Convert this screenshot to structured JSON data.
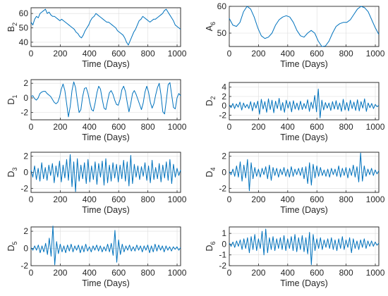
{
  "chart_data": [
    {
      "type": "line",
      "ylabel": "B",
      "ylabel_sub": "2",
      "xlabel": "Time (Days)",
      "xlim": [
        0,
        1024
      ],
      "ylim": [
        37,
        64
      ],
      "xticks": [
        0,
        200,
        400,
        600,
        800,
        1000
      ],
      "yticks": [
        40,
        50,
        60
      ],
      "grid": true,
      "color": "#0072BD",
      "series": [
        {
          "values": [
            54,
            52,
            56,
            58,
            57,
            60,
            61,
            62,
            63,
            60,
            61,
            59,
            58,
            58,
            57,
            56,
            55,
            56,
            55,
            54,
            53,
            52,
            51,
            50,
            49,
            47,
            46,
            44,
            43,
            45,
            48,
            50,
            52,
            55,
            57,
            58,
            60,
            59,
            58,
            57,
            56,
            55,
            54,
            54,
            53,
            52,
            51,
            50,
            48,
            47,
            46,
            45,
            43,
            40,
            38,
            41,
            44,
            47,
            49,
            52,
            55,
            56,
            58,
            57,
            56,
            55,
            54,
            55,
            56,
            56,
            57,
            58,
            59,
            60,
            62,
            63,
            61,
            59,
            57,
            55,
            52,
            51,
            50,
            49
          ]
        }
      ]
    },
    {
      "type": "line",
      "ylabel": "A",
      "ylabel_sub": "6",
      "xlabel": "Time (Days)",
      "xlim": [
        0,
        1024
      ],
      "ylim": [
        45,
        60
      ],
      "xticks": [
        0,
        200,
        400,
        600,
        800,
        1000
      ],
      "yticks": [
        50,
        60
      ],
      "grid": true,
      "color": "#0072BD",
      "series": [
        {
          "values": [
            55.5,
            53,
            52.5,
            54,
            58,
            60,
            59,
            56,
            52,
            49,
            48,
            48.5,
            50,
            53,
            55,
            56,
            56.5,
            56,
            54,
            51,
            49,
            48.5,
            50,
            51,
            50,
            47,
            45,
            45.2,
            47,
            50,
            52.5,
            53.5,
            54,
            54,
            55,
            57,
            59,
            60,
            59.5,
            58,
            55,
            52,
            49.5
          ]
        }
      ]
    },
    {
      "type": "line",
      "ylabel": "D",
      "ylabel_sub": "1",
      "xlabel": "Time (Days)",
      "xlim": [
        0,
        1024
      ],
      "ylim": [
        -3,
        2.5
      ],
      "xticks": [
        0,
        200,
        400,
        600,
        800,
        1000
      ],
      "yticks": [
        -2,
        0,
        2
      ],
      "grid": true,
      "color": "#0072BD",
      "series": [
        {
          "values": [
            0.2,
            0.3,
            -0.1,
            -0.3,
            0,
            0.6,
            0.8,
            0.9,
            0.9,
            0.6,
            0.4,
            0.2,
            -0.2,
            -0.6,
            -0.8,
            -0.6,
            0.1,
            1.2,
            1.9,
            1.0,
            -0.8,
            -2.6,
            -1.2,
            1.0,
            2.2,
            1.4,
            -0.4,
            -2.0,
            -1.6,
            0.2,
            1.3,
            1.4,
            0.6,
            -0.6,
            -1.6,
            -1.8,
            -0.7,
            0.7,
            1.6,
            1.2,
            -0.2,
            -1.4,
            -1.6,
            -0.4,
            0.7,
            1.0,
            0.5,
            -0.3,
            -0.9,
            -1.0,
            -0.2,
            1.1,
            1.6,
            0.9,
            -0.6,
            -1.9,
            -0.8,
            0.6,
            1.0,
            0.5,
            -0.2,
            -0.9,
            -1.6,
            -0.7,
            0.8,
            1.6,
            0.8,
            -0.6,
            -1.4,
            -0.8,
            0.4,
            1.4,
            2.0,
            0.4,
            -1.9,
            -2.2,
            -0.3,
            1.8,
            2.1,
            0.4,
            -1.3,
            -1.5,
            0,
            0.6,
            0.3
          ]
        }
      ]
    },
    {
      "type": "line",
      "ylabel": "D",
      "ylabel_sub": "2",
      "xlabel": "Time (Days)",
      "xlim": [
        0,
        1024
      ],
      "ylim": [
        -3,
        5
      ],
      "xticks": [
        0,
        200,
        400,
        600,
        800,
        1000
      ],
      "yticks": [
        -2,
        0,
        2,
        4
      ],
      "grid": true,
      "color": "#0072BD",
      "series": [
        {
          "values": [
            0.2,
            -0.4,
            0.5,
            -0.6,
            0.4,
            -0.3,
            0.8,
            -0.9,
            0.6,
            -0.4,
            0.3,
            -0.6,
            0.9,
            -1.1,
            0.7,
            -0.5,
            1.0,
            -1.8,
            1.4,
            -0.7,
            0.9,
            -1.4,
            1.5,
            -0.8,
            1.2,
            -1.5,
            1.0,
            -0.6,
            1.6,
            -1.0,
            0.7,
            -1.4,
            1.2,
            -0.5,
            0.9,
            -1.3,
            1.1,
            -0.7,
            0.6,
            -0.9,
            1.0,
            -0.8,
            0.5,
            -0.6,
            1.3,
            -1.2,
            0.8,
            -0.6,
            2.2,
            -1.3,
            3.6,
            -2.6,
            1.2,
            -0.9,
            0.7,
            -0.5,
            0.6,
            -1.0,
            0.9,
            -0.7,
            1.1,
            -0.8,
            0.6,
            -1.2,
            1.4,
            -0.9,
            0.7,
            -1.1,
            1.2,
            -0.6,
            0.8,
            -1.0,
            1.3,
            -1.1,
            0.9,
            -0.5,
            1.5,
            -1.2,
            0.6,
            -0.4,
            0.5,
            -0.6,
            0.3,
            -0.2,
            0.1
          ]
        }
      ]
    },
    {
      "type": "line",
      "ylabel": "D",
      "ylabel_sub": "3",
      "xlabel": "Time (Days)",
      "xlim": [
        0,
        1024
      ],
      "ylim": [
        -2.5,
        2.5
      ],
      "xticks": [
        0,
        200,
        400,
        600,
        800,
        1000
      ],
      "yticks": [
        -2,
        0,
        2
      ],
      "grid": true,
      "color": "#0072BD",
      "series": [
        {
          "values": [
            0.3,
            -0.6,
            0.8,
            -0.9,
            0.5,
            -1.1,
            1.2,
            -0.8,
            0.6,
            -1.0,
            0.9,
            -0.4,
            1.1,
            -1.3,
            0.8,
            -0.6,
            1.4,
            -1.2,
            0.9,
            -0.7,
            1.6,
            -1.0,
            2.2,
            -1.8,
            1.3,
            -2.4,
            1.7,
            -1.1,
            0.9,
            -0.8,
            1.2,
            -1.4,
            1.6,
            -1.2,
            0.8,
            -0.9,
            1.3,
            -1.5,
            1.1,
            -0.6,
            1.4,
            -1.6,
            1.7,
            -1.3,
            0.9,
            -1.1,
            1.2,
            -0.7,
            1.0,
            -1.2,
            0.9,
            -0.8,
            1.5,
            -1.1,
            1.3,
            -1.7,
            2.1,
            -1.4,
            1.0,
            -0.6,
            0.8,
            -0.9,
            0.7,
            -0.5,
            1.2,
            -1.0,
            0.8,
            -1.3,
            1.5,
            -0.9,
            0.6,
            -0.8,
            1.1,
            -1.2,
            0.9,
            -0.7,
            1.3,
            -1.0,
            1.6,
            -1.4,
            1.0,
            -0.6,
            0.5,
            -0.4,
            0.3
          ]
        }
      ]
    },
    {
      "type": "line",
      "ylabel": "D",
      "ylabel_sub": "4",
      "xlabel": "Time (Days)",
      "xlim": [
        0,
        1024
      ],
      "ylim": [
        -2.5,
        2.5
      ],
      "xticks": [
        0,
        200,
        400,
        600,
        800,
        1000
      ],
      "yticks": [
        -2,
        0,
        2
      ],
      "grid": true,
      "color": "#0072BD",
      "series": [
        {
          "values": [
            0.1,
            -0.3,
            0.4,
            -0.5,
            0.8,
            -0.6,
            1.3,
            -1.1,
            0.9,
            -0.7,
            1.6,
            -2.3,
            1.2,
            -0.8,
            0.6,
            -0.5,
            0.4,
            -0.6,
            0.5,
            -0.3,
            0.7,
            -0.8,
            0.9,
            -1.0,
            0.6,
            -0.4,
            0.5,
            -0.6,
            0.4,
            -0.3,
            0.6,
            -0.5,
            0.4,
            -0.6,
            0.7,
            -0.5,
            0.4,
            -0.3,
            0.5,
            -0.4,
            0.6,
            -0.8,
            0.7,
            -1.4,
            1.2,
            -1.6,
            1.0,
            -0.7,
            0.8,
            -0.5,
            0.6,
            -0.4,
            0.3,
            -0.5,
            0.4,
            -0.6,
            0.5,
            -0.3,
            0.4,
            -0.5,
            0.8,
            -0.6,
            0.5,
            -0.4,
            0.6,
            -0.7,
            0.5,
            -0.4,
            0.9,
            -0.6,
            0.7,
            -1.2,
            2.4,
            -1.1,
            0.8,
            -0.5,
            0.4,
            -0.3,
            0.5,
            -0.4,
            0.3,
            -0.2,
            0.2
          ]
        }
      ]
    },
    {
      "type": "line",
      "ylabel": "D",
      "ylabel_sub": "5",
      "xlabel": "Time (Days)",
      "xlim": [
        0,
        1024
      ],
      "ylim": [
        -2,
        2.5
      ],
      "xticks": [
        0,
        200,
        400,
        600,
        800,
        1000
      ],
      "yticks": [
        -2,
        0,
        2
      ],
      "grid": true,
      "color": "#0072BD",
      "series": [
        {
          "values": [
            0.1,
            -0.2,
            0.3,
            -0.2,
            0.4,
            -0.5,
            0.3,
            -0.4,
            0.6,
            -0.7,
            1.2,
            -0.9,
            2.6,
            -1.9,
            0.8,
            -0.6,
            0.5,
            -0.4,
            0.3,
            -0.5,
            0.4,
            -0.3,
            0.5,
            -0.4,
            0.3,
            -0.2,
            0.4,
            -0.5,
            0.3,
            -0.4,
            0.5,
            -0.3,
            0.2,
            -0.4,
            0.3,
            -0.2,
            0.4,
            -0.3,
            0.3,
            -0.4,
            0.2,
            -0.3,
            0.5,
            -0.4,
            0.6,
            -0.8,
            2.1,
            -1.6,
            1.0,
            -0.7,
            0.5,
            -0.4,
            0.3,
            -0.2,
            0.4,
            -0.3,
            0.2,
            -0.3,
            0.4,
            -0.2,
            0.3,
            -0.4,
            0.3,
            -0.2,
            0.4,
            -0.5,
            0.3,
            -0.4,
            0.5,
            -0.3,
            0.4,
            -0.2,
            0.3,
            -0.4,
            0.3,
            -0.2,
            0.2,
            -0.3,
            0.2,
            -0.1,
            0.2,
            -0.2,
            0.1
          ]
        }
      ]
    },
    {
      "type": "line",
      "ylabel": "D",
      "ylabel_sub": "6",
      "xlabel": "Time (Days)",
      "xlim": [
        0,
        1024
      ],
      "ylim": [
        -2,
        1.6
      ],
      "xticks": [
        0,
        200,
        400,
        600,
        800,
        1000
      ],
      "yticks": [
        -2,
        -1,
        0,
        1
      ],
      "grid": true,
      "color": "#0072BD",
      "series": [
        {
          "values": [
            0.1,
            -0.2,
            0.2,
            -0.3,
            0.3,
            -0.2,
            0.4,
            -0.5,
            0.5,
            -0.4,
            0.6,
            -0.8,
            0.7,
            -0.5,
            0.9,
            -0.6,
            0.5,
            -0.4,
            1.2,
            -1.0,
            1.4,
            -0.8,
            0.6,
            -0.5,
            0.7,
            -0.6,
            0.5,
            -0.4,
            0.6,
            -0.5,
            0.8,
            -0.6,
            0.5,
            -0.4,
            0.7,
            -0.6,
            0.9,
            -0.7,
            0.6,
            -0.5,
            0.8,
            -0.7,
            0.6,
            -0.9,
            1.1,
            -1.9,
            0.9,
            -0.6,
            0.5,
            -0.4,
            0.6,
            -0.5,
            0.4,
            -0.3,
            0.5,
            -0.4,
            0.6,
            -0.5,
            0.4,
            -0.6,
            0.5,
            -0.4,
            0.7,
            -0.5,
            0.4,
            -0.3,
            0.6,
            -0.8,
            0.5,
            -0.4,
            0.3,
            -0.5,
            0.4,
            -0.3,
            0.5,
            -0.4,
            0.3,
            -0.2,
            0.3,
            -0.2,
            0.2,
            -0.1,
            0.1
          ]
        }
      ]
    }
  ]
}
